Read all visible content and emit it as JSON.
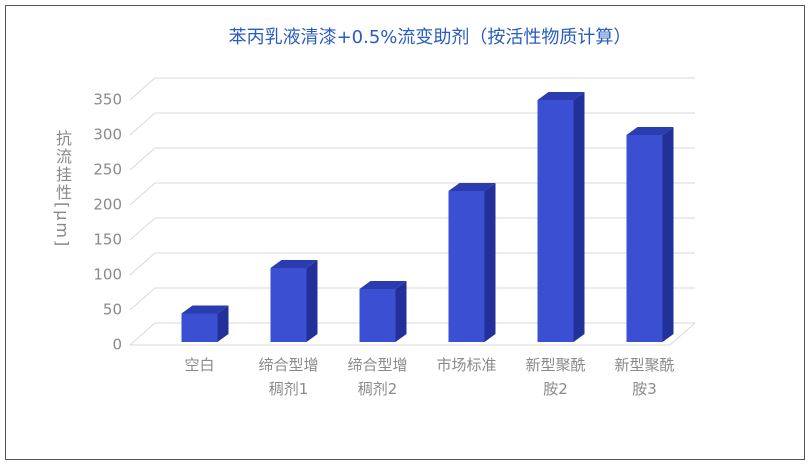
{
  "chart_data": {
    "type": "bar3d",
    "title": "苯丙乳液清漆+0.5%流变助剂（按活性物质计算）",
    "y_label": "抗流挂性[μm]",
    "categories": [
      "空白",
      "缔合型增稠剂1",
      "缔合型增稠剂2",
      "市场标准",
      "新型聚酰胺2",
      "新型聚酰胺3"
    ],
    "values": [
      45,
      110,
      80,
      220,
      350,
      300
    ],
    "color": "#3a4fd2",
    "ylim": [
      0,
      350
    ],
    "yticks": [
      0,
      50,
      100,
      150,
      200,
      250,
      300,
      350
    ],
    "grid": true
  }
}
